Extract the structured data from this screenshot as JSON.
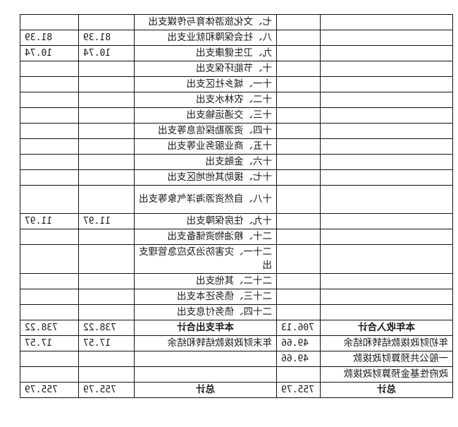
{
  "rows": [
    {
      "income_item": "",
      "income_amount": "",
      "expense_item": "七、文化旅游体育与传媒支出",
      "expense_amount": "",
      "expense_amount_2": ""
    },
    {
      "income_item": "",
      "income_amount": "",
      "expense_item": "八、社会保障和就业支出",
      "expense_amount": "81.39",
      "expense_amount_2": "81.39"
    },
    {
      "income_item": "",
      "income_amount": "",
      "expense_item": "九、卫生健康支出",
      "expense_amount": "10.74",
      "expense_amount_2": "10.74"
    },
    {
      "income_item": "",
      "income_amount": "",
      "expense_item": "十、节能环保支出",
      "expense_amount": "",
      "expense_amount_2": ""
    },
    {
      "income_item": "",
      "income_amount": "",
      "expense_item": "十一、城乡社区支出",
      "expense_amount": "",
      "expense_amount_2": ""
    },
    {
      "income_item": "",
      "income_amount": "",
      "expense_item": "十二、农林水支出",
      "expense_amount": "",
      "expense_amount_2": ""
    },
    {
      "income_item": "",
      "income_amount": "",
      "expense_item": "十三、交通运输支出",
      "expense_amount": "",
      "expense_amount_2": ""
    },
    {
      "income_item": "",
      "income_amount": "",
      "expense_item": "十四、资源勘探信息等支出",
      "expense_amount": "",
      "expense_amount_2": ""
    },
    {
      "income_item": "",
      "income_amount": "",
      "expense_item": "十五、商业服务业等支出",
      "expense_amount": "",
      "expense_amount_2": ""
    },
    {
      "income_item": "",
      "income_amount": "",
      "expense_item": "十六、金融支出",
      "expense_amount": "",
      "expense_amount_2": ""
    },
    {
      "income_item": "",
      "income_amount": "",
      "expense_item": "十七、援助其他地区支出",
      "expense_amount": "",
      "expense_amount_2": ""
    },
    {
      "income_item": "",
      "income_amount": "",
      "expense_item": "十八、自然资源海洋气象等支出",
      "expense_amount": "",
      "expense_amount_2": "",
      "two_line": true
    },
    {
      "income_item": "",
      "income_amount": "",
      "expense_item": "十九、住房保障支出",
      "expense_amount": "11.97",
      "expense_amount_2": "11.97"
    },
    {
      "income_item": "",
      "income_amount": "",
      "expense_item": "二十、粮油物资储备支出",
      "expense_amount": "",
      "expense_amount_2": ""
    },
    {
      "income_item": "",
      "income_amount": "",
      "expense_item": "二十一、灾害防治及应急管理支出",
      "expense_amount": "",
      "expense_amount_2": "",
      "two_line": true
    },
    {
      "income_item": "",
      "income_amount": "",
      "expense_item": "二十二、其他支出",
      "expense_amount": "",
      "expense_amount_2": ""
    },
    {
      "income_item": "",
      "income_amount": "",
      "expense_item": "二十三、债务还本支出",
      "expense_amount": "",
      "expense_amount_2": ""
    },
    {
      "income_item": "",
      "income_amount": "",
      "expense_item": "二十四、债务付息支出",
      "expense_amount": "",
      "expense_amount_2": ""
    },
    {
      "income_item": "本年收入合计",
      "income_amount": "706.13",
      "expense_item": "本年支出合计",
      "expense_amount": "738.22",
      "expense_amount_2": "738.22",
      "bold": true
    },
    {
      "income_item": "年初财政拨款结转和结余",
      "income_amount": "49.66",
      "expense_item": "年末财政拨款结转和结余",
      "expense_amount": "17.57",
      "expense_amount_2": "17.57"
    },
    {
      "income_item": "一般公共预算财政拨款",
      "income_amount": "49.66",
      "expense_item": "",
      "expense_amount": "",
      "expense_amount_2": ""
    },
    {
      "income_item": "政府性基金预算财政拨款",
      "income_amount": "",
      "expense_item": "",
      "expense_amount": "",
      "expense_amount_2": ""
    },
    {
      "income_item": "总计",
      "income_amount": "755.79",
      "expense_item": "总计",
      "expense_amount": "755.79",
      "expense_amount_2": "755.79",
      "bold": true
    }
  ]
}
